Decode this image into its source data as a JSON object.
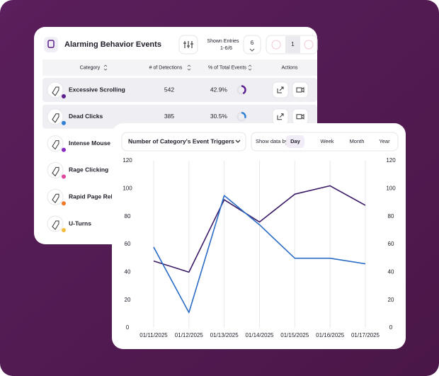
{
  "table_card": {
    "title": "Alarming Behavior Events",
    "shown_entries_label": "Shown Entries",
    "shown_entries": "1-6/6",
    "page_size": "6",
    "page": "1",
    "columns": [
      "Category",
      "# of Detections",
      "% of Total Events",
      "Actions"
    ],
    "rows": [
      {
        "category": "Excessive Scrolling",
        "detections": "542",
        "percent": "42.9%",
        "dot": "#5b1f8f"
      },
      {
        "category": "Dead Clicks",
        "detections": "385",
        "percent": "30.5%",
        "dot": "#2f7fd6"
      },
      {
        "category": "Intense Mouse M",
        "dot": "#8a2bc2"
      },
      {
        "category": "Rage Clicking",
        "dot": "#e0479e"
      },
      {
        "category": "Rapid Page Reloa",
        "dot": "#f07a2a"
      },
      {
        "category": "U-Turns",
        "dot": "#f2bd3c"
      }
    ]
  },
  "chart_data": {
    "type": "line",
    "title": "Number of Category's Event Triggers",
    "show_by_label": "Show data by:",
    "periods": [
      "Day",
      "Week",
      "Month",
      "Year"
    ],
    "selected_period": "Day",
    "categories": [
      "01/11/2025",
      "01/12/2025",
      "01/13/2025",
      "01/14/2025",
      "01/15/2025",
      "01/16/2025",
      "01/17/2025"
    ],
    "series": [
      {
        "color": "#3a1a66",
        "values": [
          48,
          40,
          92,
          76,
          96,
          102,
          88
        ]
      },
      {
        "color": "#2a6cc4",
        "values": [
          58,
          11,
          95,
          74,
          50,
          50,
          46
        ]
      }
    ],
    "ylim": [
      0,
      120
    ],
    "yticks": [
      0,
      20,
      40,
      60,
      80,
      100,
      120
    ],
    "y2lim": [
      0,
      120
    ],
    "y2ticks": [
      0,
      20,
      40,
      60,
      80,
      100,
      120
    ],
    "grid": true
  }
}
